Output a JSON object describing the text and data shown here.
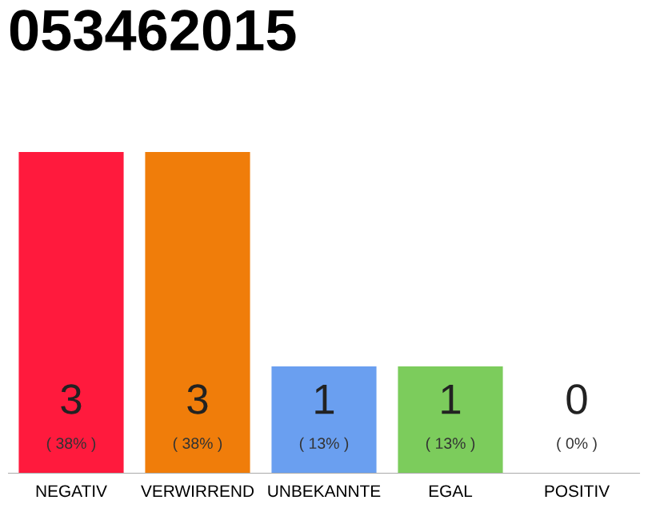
{
  "chart_data": {
    "type": "bar",
    "title": "053462015",
    "categories": [
      "NEGATIV",
      "VERWIRREND",
      "UNBEKANNTE",
      "EGAL",
      "POSITIV"
    ],
    "values": [
      3,
      3,
      1,
      1,
      0
    ],
    "colors": [
      "#ff1a3d",
      "#f07d0a",
      "#6a9ff0",
      "#7ccc5c",
      "#eeeeee"
    ],
    "value_labels": [
      "3\n( 38% )",
      "3\n( 38% )",
      "1\n( 13% )",
      "1\n( 13% )",
      "0\n( 0% )"
    ],
    "ylim": [
      0,
      3
    ],
    "grid": false,
    "legend": false,
    "tick_labels": "x"
  }
}
